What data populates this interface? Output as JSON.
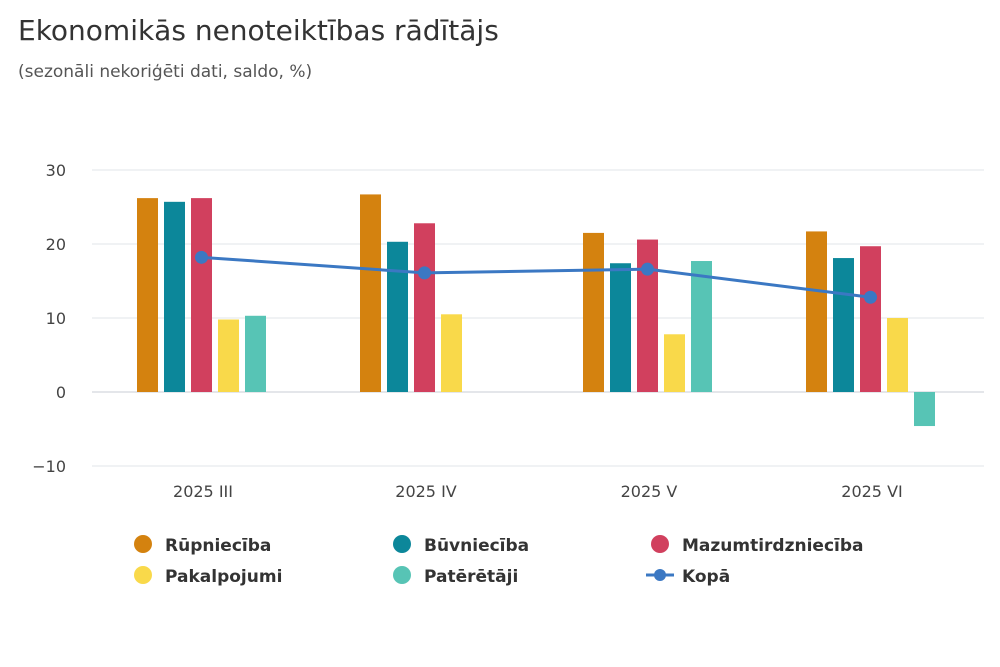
{
  "title": "Ekonomikās nenoteiktības rādītājs",
  "subtitle": "(sezonāli nekoriģēti dati, saldo, %)",
  "chart_data": {
    "type": "bar",
    "categories": [
      "2025 III",
      "2025 IV",
      "2025 V",
      "2025 VI"
    ],
    "yticks": [
      "30",
      "20",
      "10",
      "0",
      "−10"
    ],
    "ylim": [
      -10,
      30
    ],
    "grid": true,
    "legend_position": "bottom",
    "series": [
      {
        "name": "Rūpniecība",
        "color": "#d4820f",
        "values": [
          26.2,
          26.7,
          21.5,
          21.7
        ]
      },
      {
        "name": "Būvniecība",
        "color": "#0c879a",
        "values": [
          25.7,
          20.3,
          17.4,
          18.1
        ]
      },
      {
        "name": "Mazumtirdzniecība",
        "color": "#d1405e",
        "values": [
          26.2,
          22.8,
          20.6,
          19.7
        ]
      },
      {
        "name": "Pakalpojumi",
        "color": "#f9d94a",
        "values": [
          9.8,
          10.5,
          7.8,
          10.0
        ]
      },
      {
        "name": "Patērētāji",
        "color": "#57c4b5",
        "values": [
          10.3,
          null,
          17.7,
          -4.6
        ]
      }
    ],
    "line": {
      "name": "Kopā",
      "color": "#3b78c3",
      "values": [
        18.2,
        16.1,
        16.6,
        12.8
      ]
    }
  }
}
